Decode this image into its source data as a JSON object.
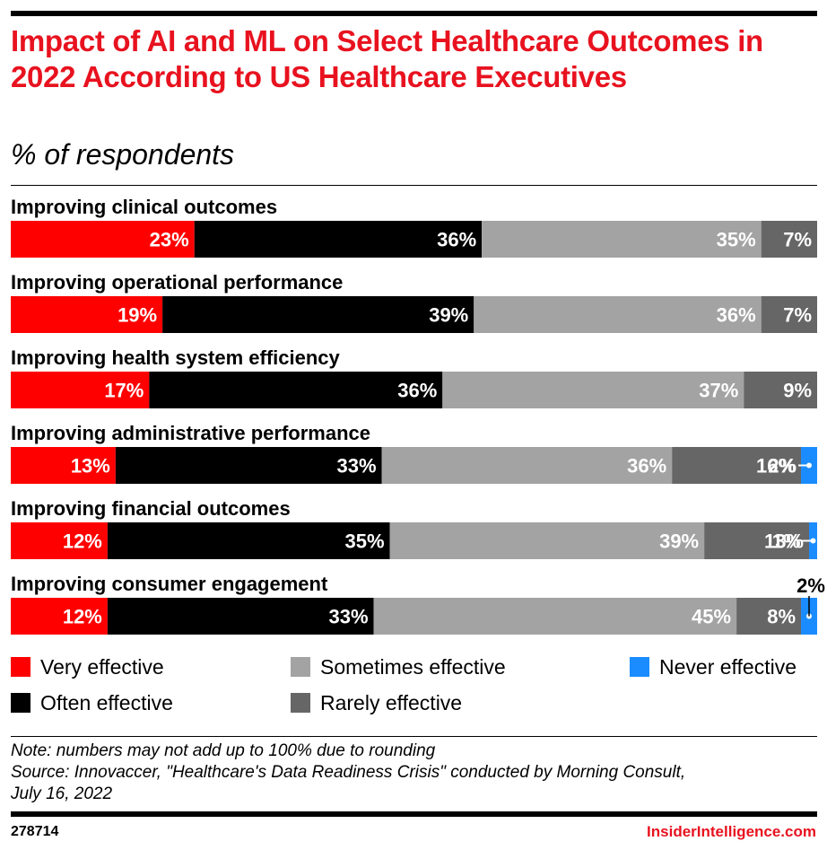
{
  "colors": {
    "title": "#e8121f",
    "very_effective": "#ff0000",
    "often_effective": "#000000",
    "sometimes_effective": "#a3a3a3",
    "rarely_effective": "#666666",
    "never_effective": "#1a8cff",
    "brand": "#e8121f"
  },
  "legend": [
    {
      "label": "Very effective",
      "color": "#ff0000"
    },
    {
      "label": "Often effective",
      "color": "#000000"
    },
    {
      "label": "Sometimes effective",
      "color": "#a3a3a3"
    },
    {
      "label": "Rarely effective",
      "color": "#666666"
    },
    {
      "label": "Never effective",
      "color": "#1a8cff"
    }
  ],
  "chart_data": {
    "type": "bar",
    "orientation": "horizontal",
    "stacked": true,
    "title": "Impact of AI and ML on Select Healthcare Outcomes in 2022 According to US Healthcare Executives",
    "subtitle": "% of respondents",
    "categories": [
      "Improving clinical outcomes",
      "Improving operational performance",
      "Improving health system efficiency",
      "Improving administrative performance",
      "Improving financial outcomes",
      "Improving consumer engagement"
    ],
    "series": [
      {
        "name": "Very effective",
        "values": [
          23,
          19,
          17,
          13,
          12,
          12
        ]
      },
      {
        "name": "Often effective",
        "values": [
          36,
          39,
          36,
          33,
          35,
          33
        ]
      },
      {
        "name": "Sometimes effective",
        "values": [
          35,
          36,
          37,
          36,
          39,
          45
        ]
      },
      {
        "name": "Rarely effective",
        "values": [
          7,
          7,
          9,
          16,
          13,
          8
        ]
      },
      {
        "name": "Never effective",
        "values": [
          0,
          0,
          0,
          2,
          1,
          2
        ]
      }
    ],
    "unit": "%",
    "xlim": [
      0,
      100
    ],
    "legend_position": "bottom",
    "grid": false
  },
  "footer": {
    "note": "Note: numbers may not add up to 100% due to rounding",
    "source_line1": "Source: Innovaccer, \"Healthcare's Data Readiness Crisis\" conducted by Morning Consult,",
    "source_line2": "July 16, 2022",
    "chart_id": "278714",
    "brand": "InsiderIntelligence.com"
  }
}
